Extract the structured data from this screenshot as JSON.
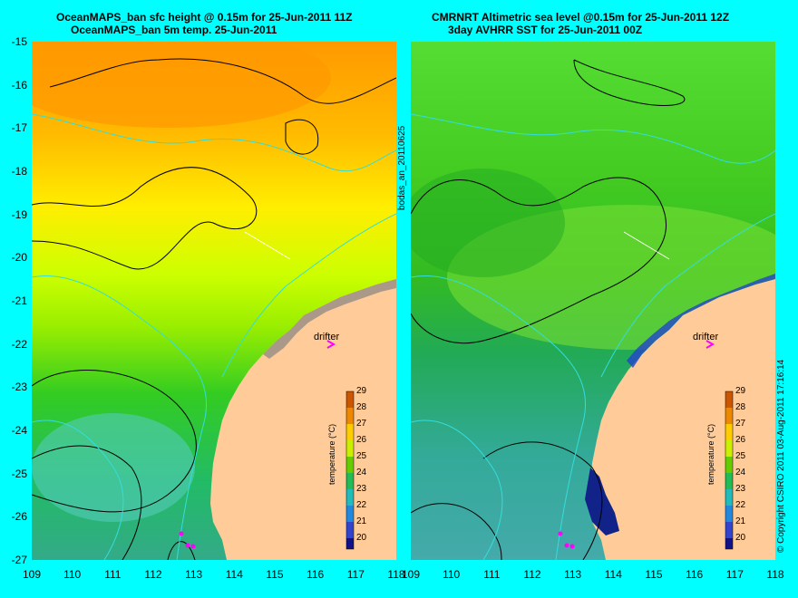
{
  "left_panel": {
    "title_line1": "OceanMAPS_ban sfc height @ 0.15m for 25-Jun-2011 11Z",
    "title_line2": "OceanMAPS_ban 5m temp. 25-Jun-2011",
    "drifter_label": "drifter",
    "colorbar_label": "temperature (°C)"
  },
  "right_panel": {
    "title_line1": "CMRNRT Altimetric sea level  @0.15m  for 25-Jun-2011 12Z",
    "title_line2": "3day AVHRR SST for 25-Jun-2011 00Z",
    "drifter_label": "drifter",
    "colorbar_label": "temperature (°C)"
  },
  "middle_vertical_text": "bodas_an_20110625",
  "right_vertical_text": "© Copyright CSIRO 2011   03-Aug-2011 17:16:14",
  "y_ticks": [
    "-15",
    "-16",
    "-17",
    "-18",
    "-19",
    "-20",
    "-21",
    "-22",
    "-23",
    "-24",
    "-25",
    "-26",
    "-27"
  ],
  "x_ticks_left": [
    "109",
    "110",
    "111",
    "112",
    "113",
    "114",
    "115",
    "116",
    "117",
    "118"
  ],
  "x_ticks_right": [
    "109",
    "110",
    "111",
    "112",
    "113",
    "114",
    "115",
    "116",
    "117",
    "118"
  ],
  "colorbar_ticks": [
    "29",
    "28",
    "27",
    "26",
    "25",
    "24",
    "23",
    "22",
    "21",
    "20"
  ],
  "colors": {
    "background": "#00ffff",
    "land": "#ffcc99",
    "contour_black": "#000000",
    "contour_cyan": "#33dddd",
    "drifter_marker": "#ff00ff"
  }
}
